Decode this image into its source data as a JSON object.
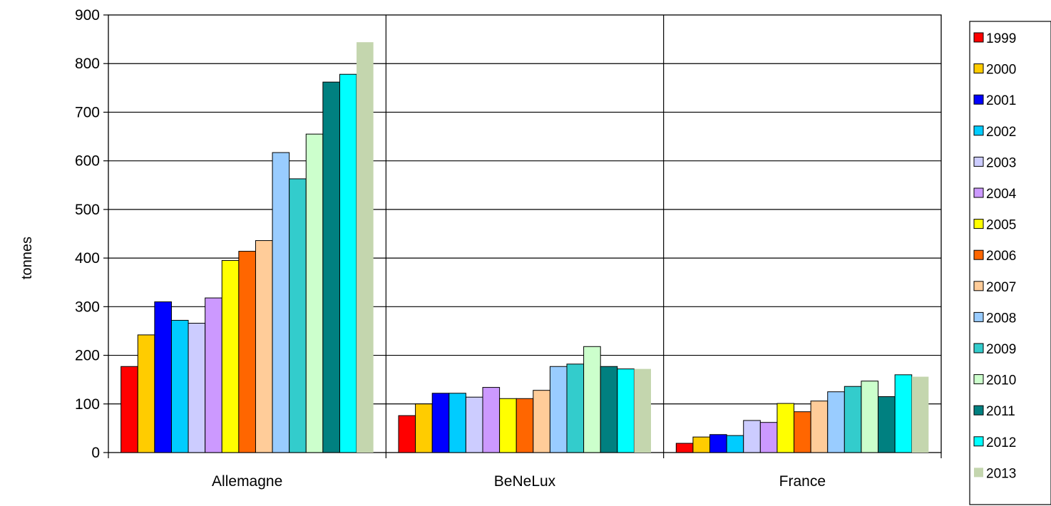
{
  "chart_data": {
    "type": "bar",
    "title": "",
    "xlabel": "",
    "ylabel": "tonnes",
    "ylim": [
      0,
      900
    ],
    "yticks": [
      0,
      100,
      200,
      300,
      400,
      500,
      600,
      700,
      800,
      900
    ],
    "grid": true,
    "legend_position": "right",
    "categories": [
      "Allemagne",
      "BeNeLux",
      "France"
    ],
    "series": [
      {
        "name": "1999",
        "color": "#FF0000",
        "values": [
          177,
          76,
          19
        ]
      },
      {
        "name": "2000",
        "color": "#FFCC00",
        "values": [
          242,
          100,
          32
        ]
      },
      {
        "name": "2001",
        "color": "#0000FF",
        "values": [
          310,
          122,
          37
        ]
      },
      {
        "name": "2002",
        "color": "#00CCFF",
        "values": [
          272,
          122,
          35
        ]
      },
      {
        "name": "2003",
        "color": "#CCCCFF",
        "values": [
          266,
          114,
          66
        ]
      },
      {
        "name": "2004",
        "color": "#CC99FF",
        "values": [
          318,
          134,
          62
        ]
      },
      {
        "name": "2005",
        "color": "#FFFF00",
        "values": [
          395,
          111,
          101
        ]
      },
      {
        "name": "2006",
        "color": "#FF6600",
        "values": [
          414,
          111,
          84
        ]
      },
      {
        "name": "2007",
        "color": "#FFCC99",
        "values": [
          436,
          128,
          106
        ]
      },
      {
        "name": "2008",
        "color": "#99CCFF",
        "values": [
          617,
          177,
          125
        ]
      },
      {
        "name": "2009",
        "color": "#33CCCC",
        "values": [
          563,
          182,
          136
        ]
      },
      {
        "name": "2010",
        "color": "#CCFFCC",
        "values": [
          655,
          218,
          147
        ]
      },
      {
        "name": "2011",
        "color": "#008080",
        "values": [
          762,
          177,
          115
        ]
      },
      {
        "name": "2012",
        "color": "#00FFFF",
        "values": [
          778,
          172,
          160
        ]
      },
      {
        "name": "2013",
        "color": "#C4D6AE",
        "values": [
          844,
          172,
          156
        ]
      }
    ]
  }
}
